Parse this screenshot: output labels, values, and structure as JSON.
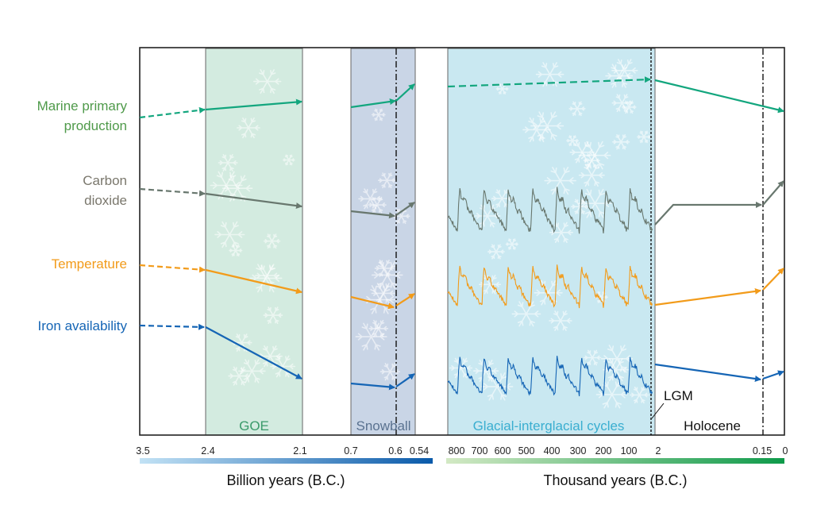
{
  "variables": {
    "marine": {
      "line1": "Marine primary",
      "line2": "production",
      "color": "#13a67e",
      "label_color": "#4f9a4a"
    },
    "co2": {
      "line1": "Carbon",
      "line2": "dioxide",
      "color": "#68776e",
      "label_color": "#7a776c"
    },
    "temperature": {
      "label": "Temperature",
      "color": "#f29b1a"
    },
    "iron": {
      "label": "Iron availability",
      "color": "#1565b5"
    }
  },
  "periods": {
    "goe": {
      "label": "GOE",
      "fill": "#d3ebe0",
      "text_color": "#3a9a6a"
    },
    "snowball": {
      "label": "Snowball",
      "fill": "#c9d5e6",
      "text_color": "#5a7290"
    },
    "glacial": {
      "label": "Glacial-interglacial cycles",
      "fill": "#c9e8f1",
      "text_color": "#3aaed0"
    },
    "holocene": {
      "label": "Holocene"
    },
    "lgm": {
      "label": "LGM"
    }
  },
  "axis_billion": {
    "ticks": [
      "3.5",
      "2.4",
      "2.1",
      "0.7",
      "0.6",
      "0.54"
    ],
    "label": "Billion years (B.C.)",
    "gradient": [
      "#c2e2f5",
      "#0a5aaa"
    ]
  },
  "axis_thousand": {
    "ticks": [
      "800",
      "700",
      "600",
      "500",
      "400",
      "300",
      "200",
      "100",
      "2",
      "0.15",
      "0"
    ],
    "label": "Thousand years (B.C.)",
    "gradient": [
      "#d3e9c4",
      "#0e9a4a"
    ]
  }
}
